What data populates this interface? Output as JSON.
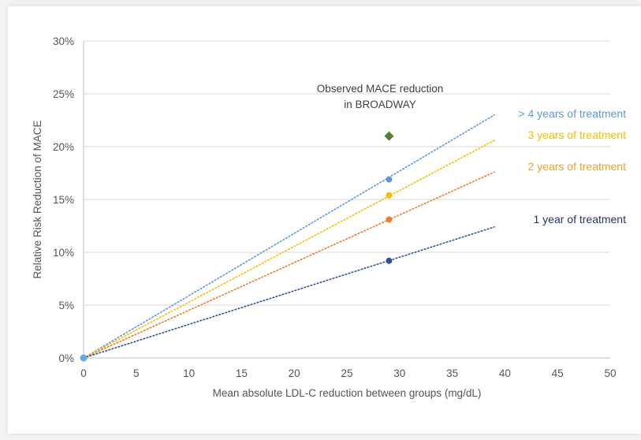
{
  "chart_data": {
    "type": "line",
    "xlabel": "Mean absolute LDL-C reduction between groups (mg/dL)",
    "ylabel": "Relative Risk Reduction  of MACE",
    "xlim": [
      0,
      50
    ],
    "ylim": [
      0,
      30
    ],
    "x_ticks": [
      "0",
      "5",
      "10",
      "15",
      "20",
      "25",
      "30",
      "35",
      "40",
      "45",
      "50"
    ],
    "y_ticks": [
      "0%",
      "5%",
      "10%",
      "15%",
      "20%",
      "25%",
      "30%"
    ],
    "grid": "horizontal",
    "series": [
      {
        "name": "> 4 years of treatment",
        "color": "#5b9bd5",
        "line": [
          [
            0,
            0
          ],
          [
            39,
            23
          ]
        ],
        "marker": [
          29,
          16.9
        ]
      },
      {
        "name": "3 years of treatment",
        "color": "#f5c000",
        "line": [
          [
            0,
            0
          ],
          [
            39,
            20.6
          ]
        ],
        "marker": [
          29,
          15.4
        ]
      },
      {
        "name": "2 years of treatment",
        "color": "#ed7d31",
        "line": [
          [
            0,
            0
          ],
          [
            39,
            17.6
          ]
        ],
        "marker": [
          29,
          13.1
        ]
      },
      {
        "name": "1 year of treatment",
        "color": "#2e5597",
        "line": [
          [
            0,
            0
          ],
          [
            39,
            12.4
          ]
        ],
        "marker": [
          29,
          9.2
        ]
      }
    ],
    "origin_point": [
      0,
      0
    ],
    "observed": {
      "label_line1": "Observed MACE reduction",
      "label_line2": "in BROADWAY",
      "x": 29,
      "y": 21,
      "color": "#548235"
    },
    "series_label_colors": [
      "#5b9bd5",
      "#f0c000",
      "#f0a030",
      "#1f3864"
    ]
  }
}
